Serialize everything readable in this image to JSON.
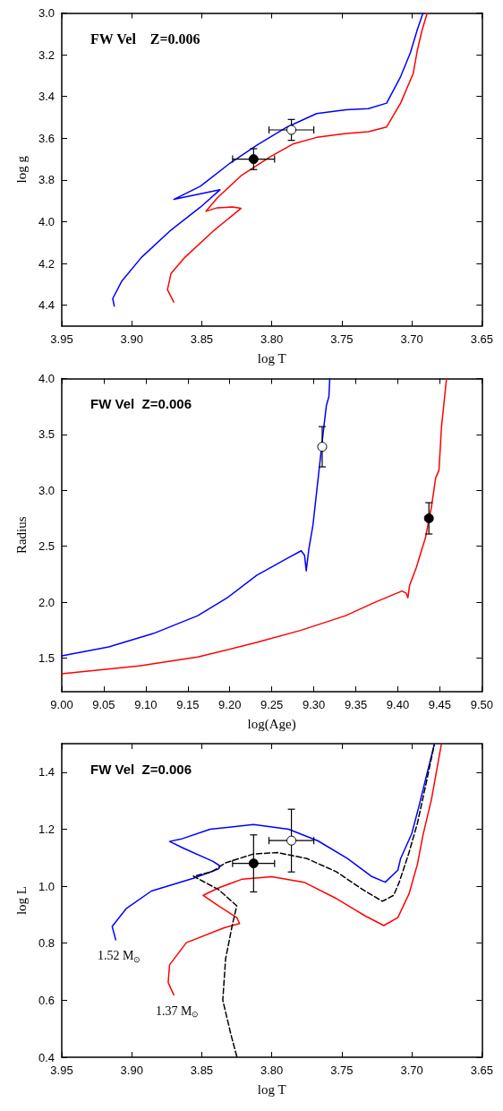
{
  "chart_data": [
    {
      "type": "line",
      "title": "FW Vel    Z=0.006",
      "xlabel": "log T",
      "ylabel": "log g",
      "xlim": [
        3.95,
        3.65
      ],
      "ylim": [
        4.5,
        3.0
      ],
      "xticks": [
        3.95,
        {
          "value": 3.9,
          "label": "3.90"
        },
        3.85,
        {
          "value": 3.8,
          "label": "3.80"
        },
        3.75,
        {
          "value": 3.7,
          "label": "3.70"
        },
        3.65
      ],
      "yticks": [
        {
          "value": 3,
          "label": "3.0"
        },
        3.2,
        3.4,
        3.6,
        3.8,
        {
          "value": 4,
          "label": "4.0"
        },
        4.2,
        4.4
      ],
      "grid": false,
      "marker": "none",
      "line_style": "solid",
      "series": [
        {
          "color": "#0000ff",
          "x": [
            3.9125,
            3.9136,
            3.907,
            3.893,
            3.872,
            3.851,
            3.837,
            3.87,
            3.851,
            3.83,
            3.81,
            3.789,
            3.768,
            3.747,
            3.731,
            3.718,
            3.708,
            3.701,
            3.696,
            3.692
          ],
          "values": [
            4.404,
            4.368,
            4.283,
            4.17,
            4.04,
            3.93,
            3.847,
            3.893,
            3.83,
            3.72,
            3.63,
            3.546,
            3.482,
            3.464,
            3.458,
            3.432,
            3.305,
            3.19,
            3.078,
            3.0
          ]
        },
        {
          "color": "#ff0000",
          "x": [
            3.87,
            3.8745,
            3.872,
            3.862,
            3.841,
            3.822,
            3.828,
            3.839,
            3.847,
            3.839,
            3.822,
            3.801,
            3.785,
            3.768,
            3.747,
            3.731,
            3.718,
            3.708,
            3.699,
            3.696,
            3.693,
            3.689
          ],
          "values": [
            4.385,
            4.326,
            4.248,
            4.17,
            4.04,
            3.936,
            3.929,
            3.933,
            3.95,
            3.886,
            3.78,
            3.688,
            3.628,
            3.596,
            3.577,
            3.569,
            3.546,
            3.432,
            3.29,
            3.177,
            3.09,
            3.0
          ]
        },
        {
          "type": "scatter",
          "marker": "circle",
          "color": "#000000",
          "x": [
            3.813
          ],
          "values": [
            3.7
          ],
          "errors": [
            0.05
          ],
          "xerrors": [
            0.015
          ]
        },
        {
          "type": "scatter",
          "marker": "circle",
          "color": "#ffffff",
          "x": [
            3.786
          ],
          "values": [
            3.56
          ],
          "errors": [
            0.05
          ],
          "xerrors": [
            0.016
          ]
        }
      ]
    },
    {
      "type": "line",
      "title": "FW Vel  Z=0.006",
      "xlabel": "log(Age)",
      "ylabel": "Radius",
      "xlim": [
        9.0,
        9.5
      ],
      "ylim": [
        1.2,
        4.0
      ],
      "xticks": [
        {
          "value": 9,
          "label": "9.00"
        },
        9.05,
        {
          "value": 9.1,
          "label": "9.10"
        },
        9.15,
        {
          "value": 9.2,
          "label": "9.20"
        },
        9.25,
        {
          "value": 9.3,
          "label": "9.30"
        },
        9.35,
        {
          "value": 9.4,
          "label": "9.40"
        },
        9.45,
        {
          "value": 9.5,
          "label": "9.50"
        }
      ],
      "yticks": [
        1.5,
        {
          "value": 2,
          "label": "2.0"
        },
        2.5,
        {
          "value": 3,
          "label": "3.0"
        },
        3.5,
        {
          "value": 4,
          "label": "4.0"
        }
      ],
      "grid": false,
      "marker": "none",
      "line_style": "solid",
      "series": [
        {
          "color": "#0000ff",
          "x": [
            9.0,
            9.056,
            9.109,
            9.162,
            9.197,
            9.232,
            9.268,
            9.285,
            9.289,
            9.291,
            9.294,
            9.299,
            9.304,
            9.308,
            9.312,
            9.315,
            9.318,
            9.319
          ],
          "values": [
            1.52,
            1.6,
            1.72,
            1.88,
            2.04,
            2.24,
            2.39,
            2.46,
            2.42,
            2.28,
            2.47,
            2.69,
            3.03,
            3.3,
            3.57,
            3.76,
            3.84,
            4.0
          ]
        },
        {
          "color": "#ff0000",
          "x": [
            9.0,
            9.092,
            9.162,
            9.232,
            9.285,
            9.338,
            9.373,
            9.405,
            9.41,
            9.412,
            9.414,
            9.422,
            9.433,
            9.44,
            9.445,
            9.449,
            9.452,
            9.458
          ],
          "values": [
            1.36,
            1.43,
            1.51,
            1.64,
            1.75,
            1.88,
            2.0,
            2.1,
            2.08,
            2.04,
            2.15,
            2.31,
            2.58,
            2.85,
            3.11,
            3.18,
            3.57,
            4.0
          ]
        },
        {
          "type": "scatter",
          "marker": "circle",
          "color": "#ffffff",
          "x": [
            9.31
          ],
          "values": [
            3.39
          ],
          "errors": [
            0.18
          ]
        },
        {
          "type": "scatter",
          "marker": "circle",
          "color": "#000000",
          "x": [
            9.437
          ],
          "values": [
            2.75
          ],
          "errors": [
            0.14
          ]
        }
      ]
    },
    {
      "type": "line",
      "title": "FW Vel  Z=0.006",
      "xlabel": "log T",
      "ylabel": "log L",
      "xlim": [
        3.95,
        3.65
      ],
      "ylim": [
        0.4,
        1.5
      ],
      "xticks": [
        3.95,
        {
          "value": 3.9,
          "label": "3.90"
        },
        3.85,
        {
          "value": 3.8,
          "label": "3.80"
        },
        3.75,
        {
          "value": 3.7,
          "label": "3.70"
        },
        3.65
      ],
      "yticks": [
        0.4,
        0.6,
        0.8,
        {
          "value": 1,
          "label": "1.0"
        },
        1.2,
        1.4
      ],
      "grid": false,
      "marker": "none",
      "line_style": "solid",
      "annotations": [
        "1.52 M$_{⊙}$",
        "1.37 M$_{⊙}$"
      ],
      "series": [
        {
          "color": "#0000ff",
          "x": [
            3.9115,
            3.914,
            3.904,
            3.886,
            3.856,
            3.838,
            3.837,
            3.842,
            3.863,
            3.873,
            3.865,
            3.844,
            3.813,
            3.788,
            3.767,
            3.746,
            3.729,
            3.719,
            3.71,
            3.708,
            3.7,
            3.695,
            3.689,
            3.684
          ],
          "values": [
            0.812,
            0.859,
            0.921,
            0.983,
            1.028,
            1.061,
            1.071,
            1.087,
            1.133,
            1.157,
            1.165,
            1.2,
            1.216,
            1.2,
            1.159,
            1.097,
            1.035,
            1.014,
            1.056,
            1.097,
            1.185,
            1.279,
            1.398,
            1.496
          ]
        },
        {
          "color": "#ff0000",
          "x": [
            3.87,
            3.874,
            3.873,
            3.861,
            3.834,
            3.823,
            3.825,
            3.838,
            3.849,
            3.838,
            3.821,
            3.8,
            3.777,
            3.754,
            3.733,
            3.72,
            3.71,
            3.702,
            3.696,
            3.692,
            3.686,
            3.679
          ],
          "values": [
            0.619,
            0.662,
            0.724,
            0.802,
            0.854,
            0.869,
            0.89,
            0.931,
            0.968,
            0.994,
            1.025,
            1.033,
            1.014,
            0.957,
            0.895,
            0.862,
            0.89,
            0.973,
            1.077,
            1.18,
            1.304,
            1.496
          ]
        },
        {
          "color": "#000000",
          "line_style": "dashed",
          "x": [
            3.825,
            3.829,
            3.835,
            3.833,
            3.828,
            3.825,
            3.838,
            3.856,
            3.843,
            3.833,
            3.813,
            3.796,
            3.775,
            3.754,
            3.735,
            3.721,
            3.713,
            3.709,
            3.702,
            3.696,
            3.69,
            3.684
          ],
          "values": [
            0.403,
            0.476,
            0.6,
            0.745,
            0.869,
            0.931,
            0.988,
            1.035,
            1.05,
            1.082,
            1.113,
            1.118,
            1.097,
            1.051,
            0.988,
            0.947,
            0.968,
            1.014,
            1.118,
            1.221,
            1.356,
            1.496
          ]
        },
        {
          "type": "scatter",
          "marker": "circle",
          "color": "#000000",
          "x": [
            3.813
          ],
          "values": [
            1.08
          ],
          "errors": [
            0.1
          ],
          "xerrors": [
            0.015
          ]
        },
        {
          "type": "scatter",
          "marker": "circle",
          "color": "#ffffff",
          "x": [
            3.786
          ],
          "values": [
            1.16
          ],
          "errors": [
            0.11
          ],
          "xerrors": [
            0.016
          ]
        }
      ]
    }
  ]
}
